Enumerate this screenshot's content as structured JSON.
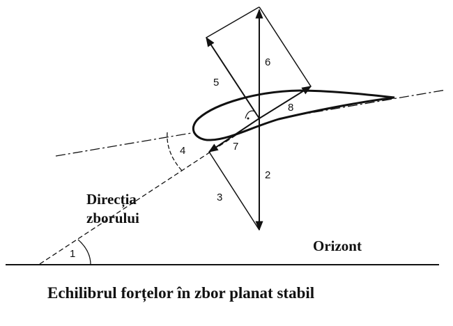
{
  "labels": {
    "n1": "1",
    "n2": "2",
    "n3": "3",
    "n4": "4",
    "n5": "5",
    "n6": "6",
    "n7": "7",
    "n8": "8"
  },
  "text": {
    "directia_line1": "Direcția",
    "directia_line2": "zborului",
    "orizont": "Orizont",
    "caption": "Echilibrul forțelor în zbor planat stabil"
  }
}
